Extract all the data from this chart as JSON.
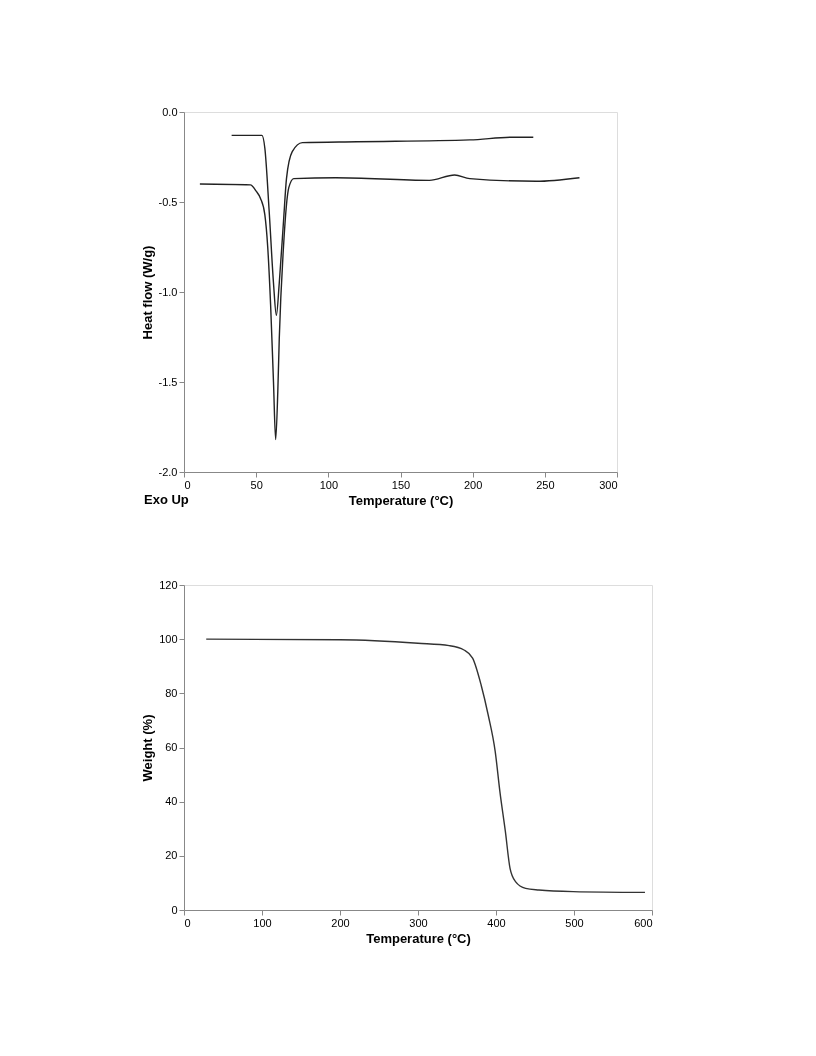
{
  "chart_data": [
    {
      "type": "line",
      "xlabel": "Temperature (°C)",
      "ylabel": "Heat flow (W/g)",
      "annotations": [
        "Exo Up"
      ],
      "xlim": [
        0,
        300
      ],
      "xticks": [
        0,
        50,
        100,
        150,
        200,
        250,
        300
      ],
      "ylim": [
        -2.0,
        0.0
      ],
      "yticks": [
        {
          "value": 0,
          "label": "0.0"
        },
        {
          "value": -0.5,
          "label": "-0.5"
        },
        {
          "value": -1.0,
          "label": "-1.0"
        },
        {
          "value": -1.5,
          "label": "-1.5"
        },
        {
          "value": -2.0,
          "label": "-2.0"
        }
      ],
      "grid": false,
      "marker": "none",
      "line_style": "solid",
      "series": [
        {
          "color": "#222222",
          "x": [
            33,
            54,
            56,
            59,
            62,
            64,
            66,
            69,
            71,
            75,
            82,
            120,
            198,
            228,
            242
          ],
          "values": [
            -0.13,
            -0.13,
            -0.2,
            -0.55,
            -0.95,
            -1.13,
            -0.95,
            -0.6,
            -0.37,
            -0.22,
            -0.17,
            -0.165,
            -0.155,
            -0.14,
            -0.14
          ]
        },
        {
          "color": "#222222",
          "x": [
            11,
            46,
            50,
            53,
            56,
            58,
            60,
            62,
            63.5,
            65,
            66,
            69,
            72.6,
            76,
            105,
            170,
            187.5,
            198,
            244,
            274
          ],
          "values": [
            -0.4,
            -0.405,
            -0.44,
            -0.48,
            -0.57,
            -0.75,
            -1.07,
            -1.5,
            -1.82,
            -1.55,
            -1.26,
            -0.74,
            -0.42,
            -0.37,
            -0.365,
            -0.38,
            -0.35,
            -0.37,
            -0.385,
            -0.365
          ]
        }
      ]
    },
    {
      "type": "line",
      "xlabel": "Temperature (°C)",
      "ylabel": "Weight (%)",
      "xlim": [
        0,
        600
      ],
      "xticks": [
        0,
        100,
        200,
        300,
        400,
        500,
        600
      ],
      "ylim": [
        0,
        120
      ],
      "yticks": [
        0,
        20,
        40,
        60,
        80,
        100,
        120
      ],
      "grid": false,
      "marker": "none",
      "line_style": "solid",
      "series": [
        {
          "color": "#333333",
          "x": [
            28.5,
            200,
            300,
            340,
            359,
            370,
            381,
            390,
            399,
            405,
            412,
            418,
            425,
            438,
            455,
            499,
            591
          ],
          "values": [
            100,
            99.8,
            98.5,
            97.6,
            96,
            93,
            83,
            72,
            58.5,
            43.7,
            29,
            15.4,
            10.5,
            8,
            7.4,
            6.8,
            6.5
          ]
        }
      ]
    }
  ]
}
